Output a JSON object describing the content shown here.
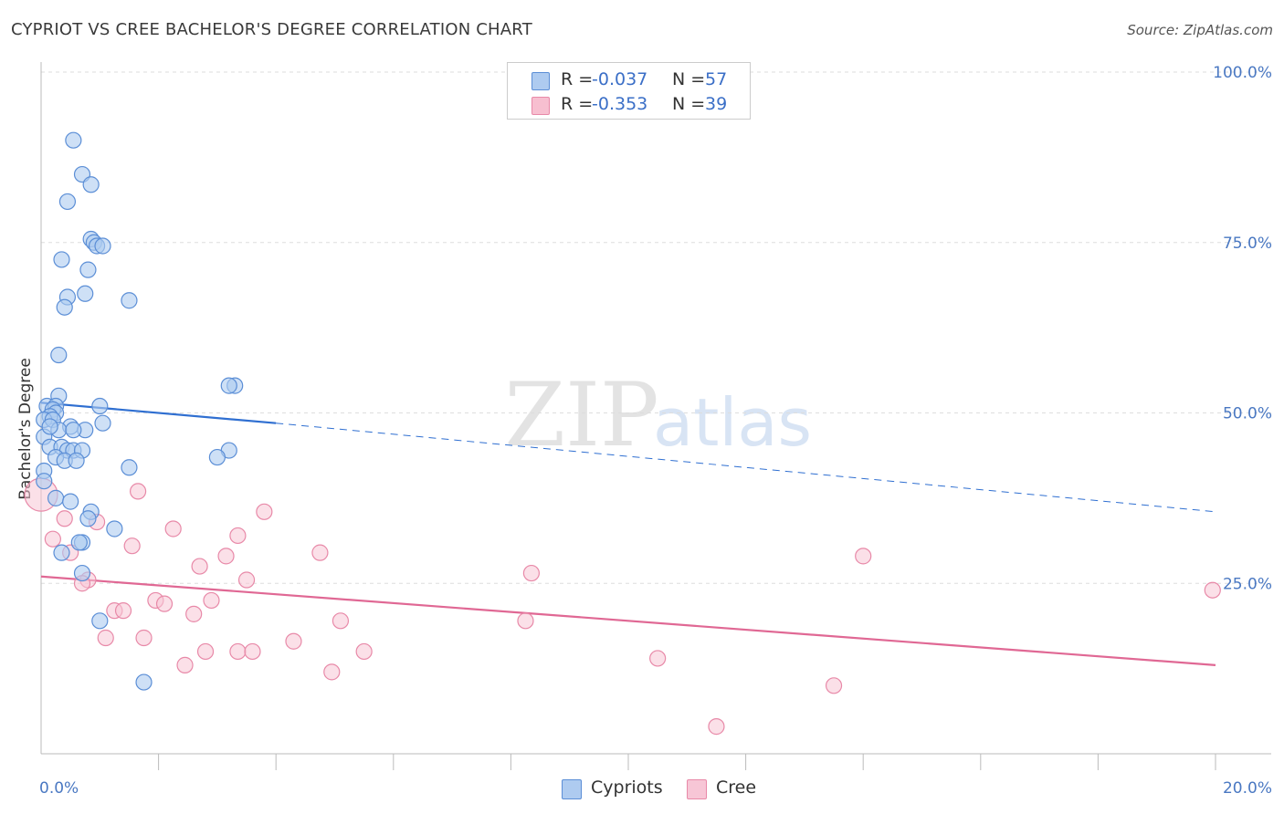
{
  "header": {
    "title": "CYPRIOT VS CREE BACHELOR'S DEGREE CORRELATION CHART",
    "source": "Source: ZipAtlas.com"
  },
  "watermark": {
    "zip": "ZIP",
    "atlas": "atlas"
  },
  "legend": {
    "rows": [
      {
        "r_label": "R =",
        "r_value": "-0.037",
        "n_label": "N =",
        "n_value": "57",
        "color": "#aecbf0"
      },
      {
        "r_label": "R =",
        "r_value": "-0.353",
        "n_label": "N =",
        "n_value": "39",
        "color": "#f7bfd0"
      }
    ]
  },
  "colors": {
    "cypriot_fill": "#aecbf0",
    "cypriot_stroke": "#5b8ed6",
    "cypriot_line": "#2f6fd1",
    "cree_fill": "#f7c6d6",
    "cree_stroke": "#e889a8",
    "cree_line": "#e06894",
    "grid": "#dddddd",
    "tick_text": "#4a78c2"
  },
  "chart_data": {
    "type": "scatter",
    "title": "CYPRIOT VS CREE BACHELOR'S DEGREE CORRELATION CHART",
    "xlabel": "",
    "ylabel": "Bachelor's Degree",
    "xlim": [
      0,
      20
    ],
    "ylim": [
      0,
      100
    ],
    "x_tick_labels": [
      "0.0%",
      "20.0%"
    ],
    "y_ticks": [
      25,
      50,
      75,
      100
    ],
    "y_tick_labels": [
      "25.0%",
      "50.0%",
      "75.0%",
      "100.0%"
    ],
    "grid": true,
    "legend_position": "top-center",
    "series": [
      {
        "name": "Cypriots",
        "r": -0.037,
        "n": 57,
        "trend": {
          "x0": 0,
          "y0": 51.5,
          "x1": 4.0,
          "y1": 48.5,
          "dash_x1": 20,
          "dash_y1": 35.5
        },
        "points": [
          [
            0.55,
            90.0
          ],
          [
            0.7,
            85.0
          ],
          [
            0.85,
            83.5
          ],
          [
            0.45,
            81.0
          ],
          [
            0.85,
            75.5
          ],
          [
            0.9,
            75.0
          ],
          [
            0.95,
            74.5
          ],
          [
            1.05,
            74.5
          ],
          [
            0.35,
            72.5
          ],
          [
            0.8,
            71.0
          ],
          [
            0.75,
            67.5
          ],
          [
            0.45,
            67.0
          ],
          [
            1.5,
            66.5
          ],
          [
            0.4,
            65.5
          ],
          [
            0.3,
            58.5
          ],
          [
            3.3,
            54.0
          ],
          [
            3.2,
            54.0
          ],
          [
            0.3,
            52.5
          ],
          [
            0.1,
            51.0
          ],
          [
            0.25,
            51.0
          ],
          [
            0.2,
            50.5
          ],
          [
            0.25,
            50.0
          ],
          [
            0.15,
            49.5
          ],
          [
            0.05,
            49.0
          ],
          [
            0.2,
            49.0
          ],
          [
            0.5,
            48.0
          ],
          [
            1.0,
            51.0
          ],
          [
            1.05,
            48.5
          ],
          [
            0.3,
            47.5
          ],
          [
            0.75,
            47.5
          ],
          [
            0.05,
            46.5
          ],
          [
            0.15,
            45.0
          ],
          [
            0.35,
            45.0
          ],
          [
            0.45,
            44.5
          ],
          [
            0.55,
            44.5
          ],
          [
            0.7,
            44.5
          ],
          [
            0.25,
            43.5
          ],
          [
            0.4,
            43.0
          ],
          [
            0.6,
            43.0
          ],
          [
            3.2,
            44.5
          ],
          [
            3.0,
            43.5
          ],
          [
            1.5,
            42.0
          ],
          [
            0.05,
            41.5
          ],
          [
            0.25,
            37.5
          ],
          [
            0.5,
            37.0
          ],
          [
            0.85,
            35.5
          ],
          [
            0.8,
            34.5
          ],
          [
            1.25,
            33.0
          ],
          [
            0.7,
            31.0
          ],
          [
            0.65,
            31.0
          ],
          [
            0.35,
            29.5
          ],
          [
            0.7,
            26.5
          ],
          [
            1.0,
            19.5
          ],
          [
            1.75,
            10.5
          ],
          [
            0.05,
            40.0
          ],
          [
            0.15,
            48.0
          ],
          [
            0.55,
            47.5
          ]
        ]
      },
      {
        "name": "Cree",
        "r": -0.353,
        "n": 39,
        "trend": {
          "x0": 0,
          "y0": 26.0,
          "x1": 20,
          "y1": 13.0
        },
        "points": [
          [
            0.0,
            38.0
          ],
          [
            1.65,
            38.5
          ],
          [
            0.4,
            34.5
          ],
          [
            0.95,
            34.0
          ],
          [
            3.8,
            35.5
          ],
          [
            2.25,
            33.0
          ],
          [
            3.35,
            32.0
          ],
          [
            0.2,
            31.5
          ],
          [
            1.55,
            30.5
          ],
          [
            0.5,
            29.5
          ],
          [
            4.75,
            29.5
          ],
          [
            3.15,
            29.0
          ],
          [
            14.0,
            29.0
          ],
          [
            2.7,
            27.5
          ],
          [
            8.35,
            26.5
          ],
          [
            3.5,
            25.5
          ],
          [
            0.8,
            25.5
          ],
          [
            0.7,
            25.0
          ],
          [
            19.95,
            24.0
          ],
          [
            1.95,
            22.5
          ],
          [
            2.1,
            22.0
          ],
          [
            2.9,
            22.5
          ],
          [
            1.25,
            21.0
          ],
          [
            1.4,
            21.0
          ],
          [
            2.6,
            20.5
          ],
          [
            5.1,
            19.5
          ],
          [
            8.25,
            19.5
          ],
          [
            1.1,
            17.0
          ],
          [
            1.75,
            17.0
          ],
          [
            4.3,
            16.5
          ],
          [
            2.8,
            15.0
          ],
          [
            3.35,
            15.0
          ],
          [
            3.6,
            15.0
          ],
          [
            5.5,
            15.0
          ],
          [
            10.5,
            14.0
          ],
          [
            2.45,
            13.0
          ],
          [
            4.95,
            12.0
          ],
          [
            13.5,
            10.0
          ],
          [
            11.5,
            4.0
          ]
        ]
      }
    ]
  }
}
